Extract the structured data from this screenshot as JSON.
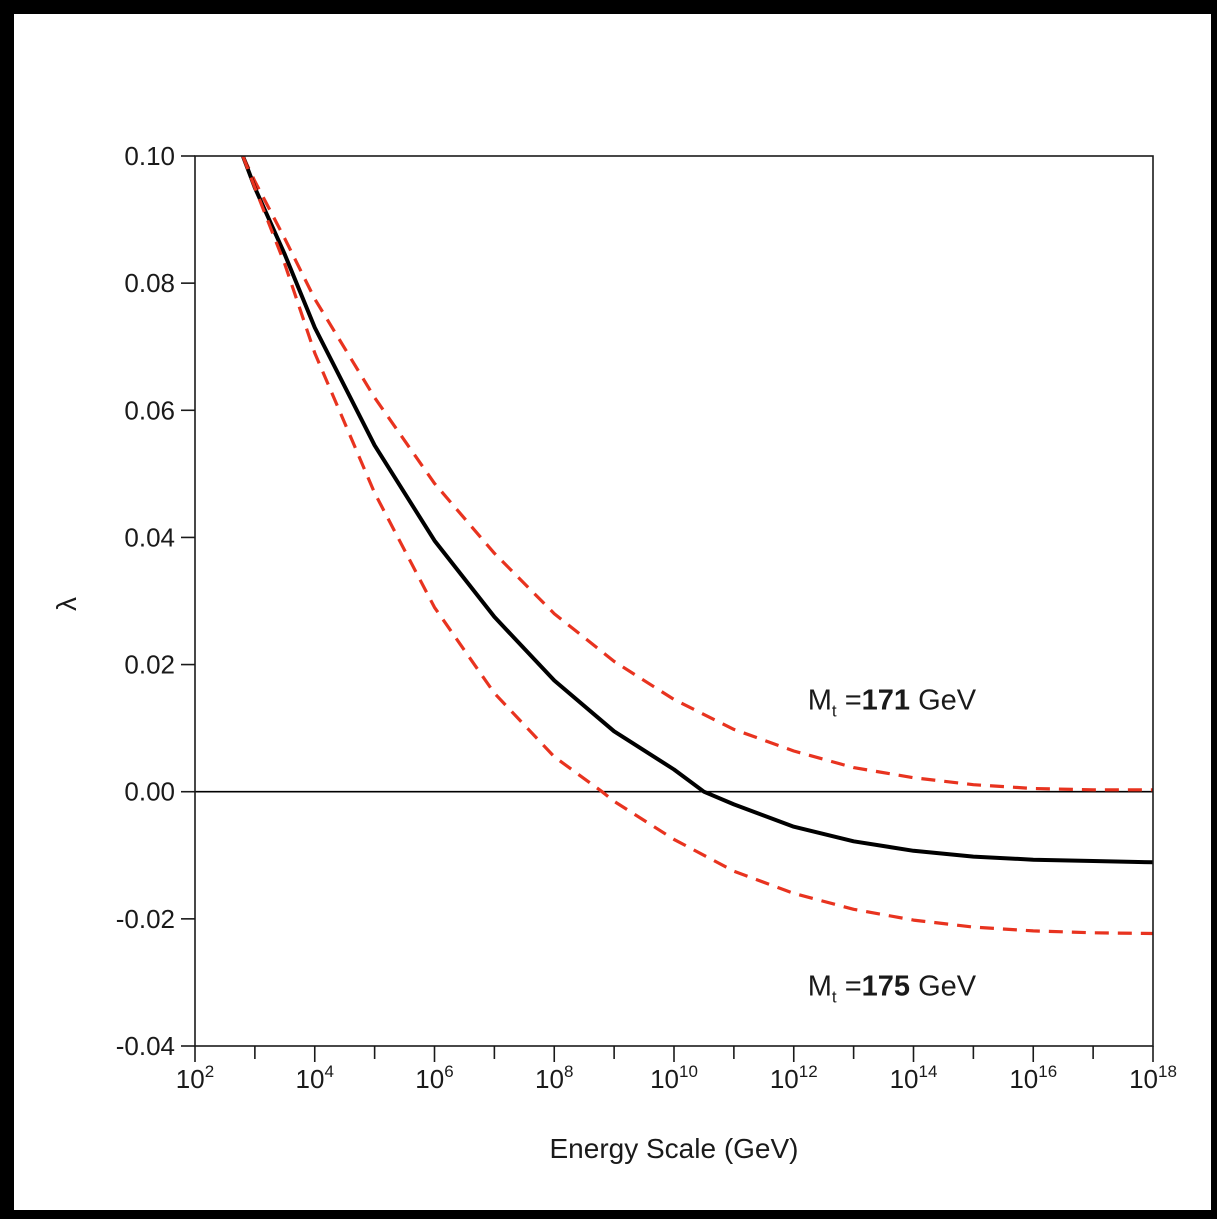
{
  "chart_data": {
    "type": "line",
    "title": "",
    "xlabel": "Energy Scale (GeV)",
    "ylabel": "λ",
    "x_scale": "log",
    "xlim": [
      100,
      1e+18
    ],
    "ylim": [
      -0.04,
      0.1
    ],
    "grid": false,
    "y_ticks": [
      "0.10",
      "0.08",
      "0.06",
      "0.04",
      "0.02",
      "0.00",
      "-0.02",
      "-0.04"
    ],
    "x_ticks": [
      {
        "base": "10",
        "exp": "2"
      },
      {
        "base": "10",
        "exp": "4"
      },
      {
        "base": "10",
        "exp": "6"
      },
      {
        "base": "10",
        "exp": "8"
      },
      {
        "base": "10",
        "exp": "10"
      },
      {
        "base": "10",
        "exp": "12"
      },
      {
        "base": "10",
        "exp": "14"
      },
      {
        "base": "10",
        "exp": "16"
      },
      {
        "base": "10",
        "exp": "18"
      }
    ],
    "reference_line": {
      "y": 0.0,
      "color": "#000000"
    },
    "series": [
      {
        "style": "dashed",
        "color": "#e8331f",
        "x": [
          631,
          1000,
          3162,
          10000,
          100000,
          1000000,
          10000000,
          100000000,
          1000000000,
          10000000000,
          100000000000,
          1000000000000,
          10000000000000,
          100000000000000,
          1000000000000000,
          10000000000000000,
          100000000000000000,
          1000000000000000000
        ],
        "y": [
          0.1,
          0.096,
          0.087,
          0.0775,
          0.062,
          0.0485,
          0.0375,
          0.028,
          0.0205,
          0.0145,
          0.0098,
          0.0064,
          0.0038,
          0.0022,
          0.0011,
          0.0005,
          0.0003,
          0.0003
        ]
      },
      {
        "style": "solid",
        "color": "#000000",
        "x": [
          631,
          1000,
          3162,
          10000,
          100000,
          1000000,
          10000000,
          100000000,
          1000000000,
          10000000000,
          31622776601,
          100000000000,
          1000000000000,
          10000000000000,
          100000000000000,
          1000000000000000,
          10000000000000000,
          100000000000000000,
          1000000000000000000
        ],
        "y": [
          0.1,
          0.095,
          0.0845,
          0.073,
          0.0545,
          0.0395,
          0.0275,
          0.0175,
          0.0095,
          0.0035,
          0.0,
          -0.002,
          -0.0055,
          -0.0078,
          -0.0093,
          -0.0102,
          -0.0107,
          -0.0109,
          -0.0111
        ]
      },
      {
        "style": "dashed",
        "color": "#e8331f",
        "x": [
          631,
          1000,
          3162,
          10000,
          100000,
          1000000,
          10000000,
          100000000,
          630957344,
          1000000000,
          10000000000,
          100000000000,
          1000000000000,
          10000000000000,
          100000000000000,
          1000000000000000,
          10000000000000000,
          100000000000000000,
          1000000000000000000
        ],
        "y": [
          0.1,
          0.095,
          0.083,
          0.069,
          0.047,
          0.029,
          0.0155,
          0.0055,
          0.0,
          -0.0015,
          -0.0075,
          -0.0125,
          -0.016,
          -0.0185,
          -0.0202,
          -0.0213,
          -0.0219,
          -0.0222,
          -0.0223
        ]
      }
    ],
    "annotations": [
      {
        "prefix": "M",
        "sub": "t",
        "eq": " =",
        "value": "171",
        "unit": " GeV",
        "at_x": 1000000000000.0,
        "at_y": 0.0145
      },
      {
        "prefix": "M",
        "sub": "t",
        "eq": " =",
        "value": "175",
        "unit": " GeV",
        "at_x": 1000000000000.0,
        "at_y": -0.0305
      }
    ]
  }
}
